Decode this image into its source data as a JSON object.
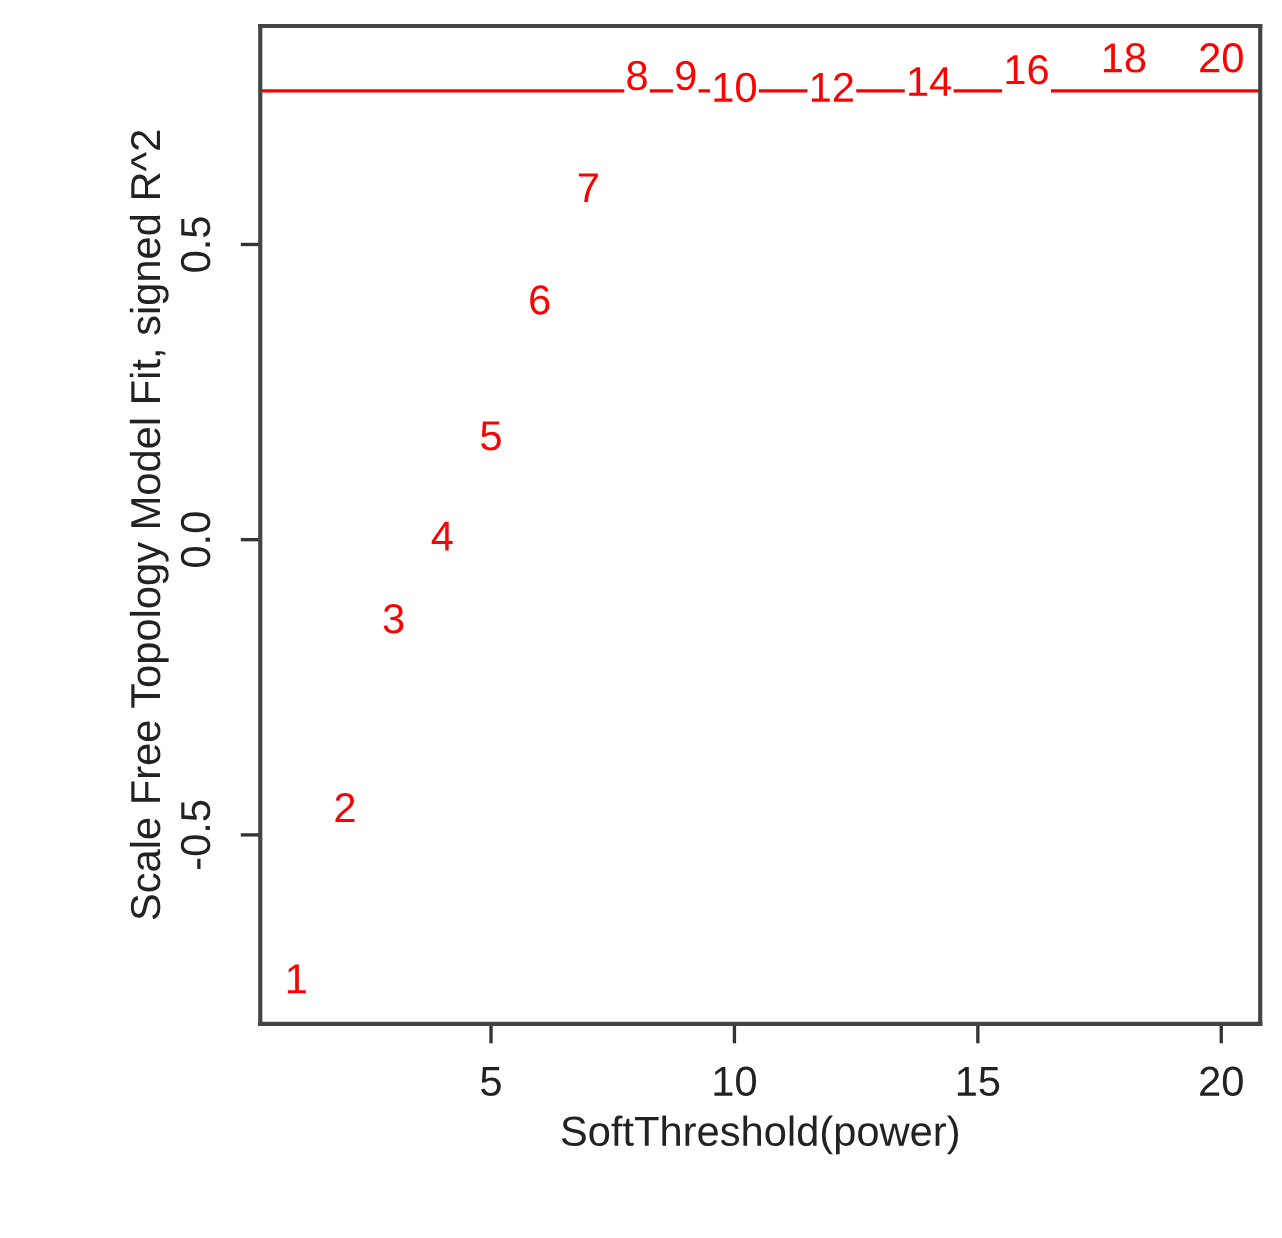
{
  "chart_data": {
    "type": "scatter",
    "xlabel": "SoftThreshold(power)",
    "ylabel": "Scale Free Topology Model Fit, signed R^2",
    "annotations": [
      {
        "text": "1",
        "x": 1,
        "y": -0.75
      },
      {
        "text": "2",
        "x": 2,
        "y": -0.46
      },
      {
        "text": "3",
        "x": 3,
        "y": -0.14
      },
      {
        "text": "4",
        "x": 4,
        "y": 0.0
      },
      {
        "text": "5",
        "x": 5,
        "y": 0.17
      },
      {
        "text": "6",
        "x": 6,
        "y": 0.4
      },
      {
        "text": "7",
        "x": 7,
        "y": 0.59
      },
      {
        "text": "8",
        "x": 8,
        "y": 0.78
      },
      {
        "text": "9",
        "x": 9,
        "y": 0.78
      },
      {
        "text": "10",
        "x": 10,
        "y": 0.76
      },
      {
        "text": "12",
        "x": 12,
        "y": 0.76
      },
      {
        "text": "14",
        "x": 14,
        "y": 0.77
      },
      {
        "text": "16",
        "x": 16,
        "y": 0.79
      },
      {
        "text": "18",
        "x": 18,
        "y": 0.81
      },
      {
        "text": "20",
        "x": 20,
        "y": 0.81
      }
    ],
    "xlim": [
      0.26,
      20.8
    ],
    "ylim": [
      -0.82,
      0.87
    ],
    "xticks": [
      5,
      10,
      15,
      20
    ],
    "yticks": [
      {
        "value": -0.5,
        "label": "-0.5"
      },
      {
        "value": 0,
        "label": "0.0"
      },
      {
        "value": 0.5,
        "label": "0.5"
      }
    ],
    "ref_lines": [
      {
        "axis": "y",
        "value": 0.76,
        "color": "#ff0000"
      }
    ],
    "grid": false
  }
}
